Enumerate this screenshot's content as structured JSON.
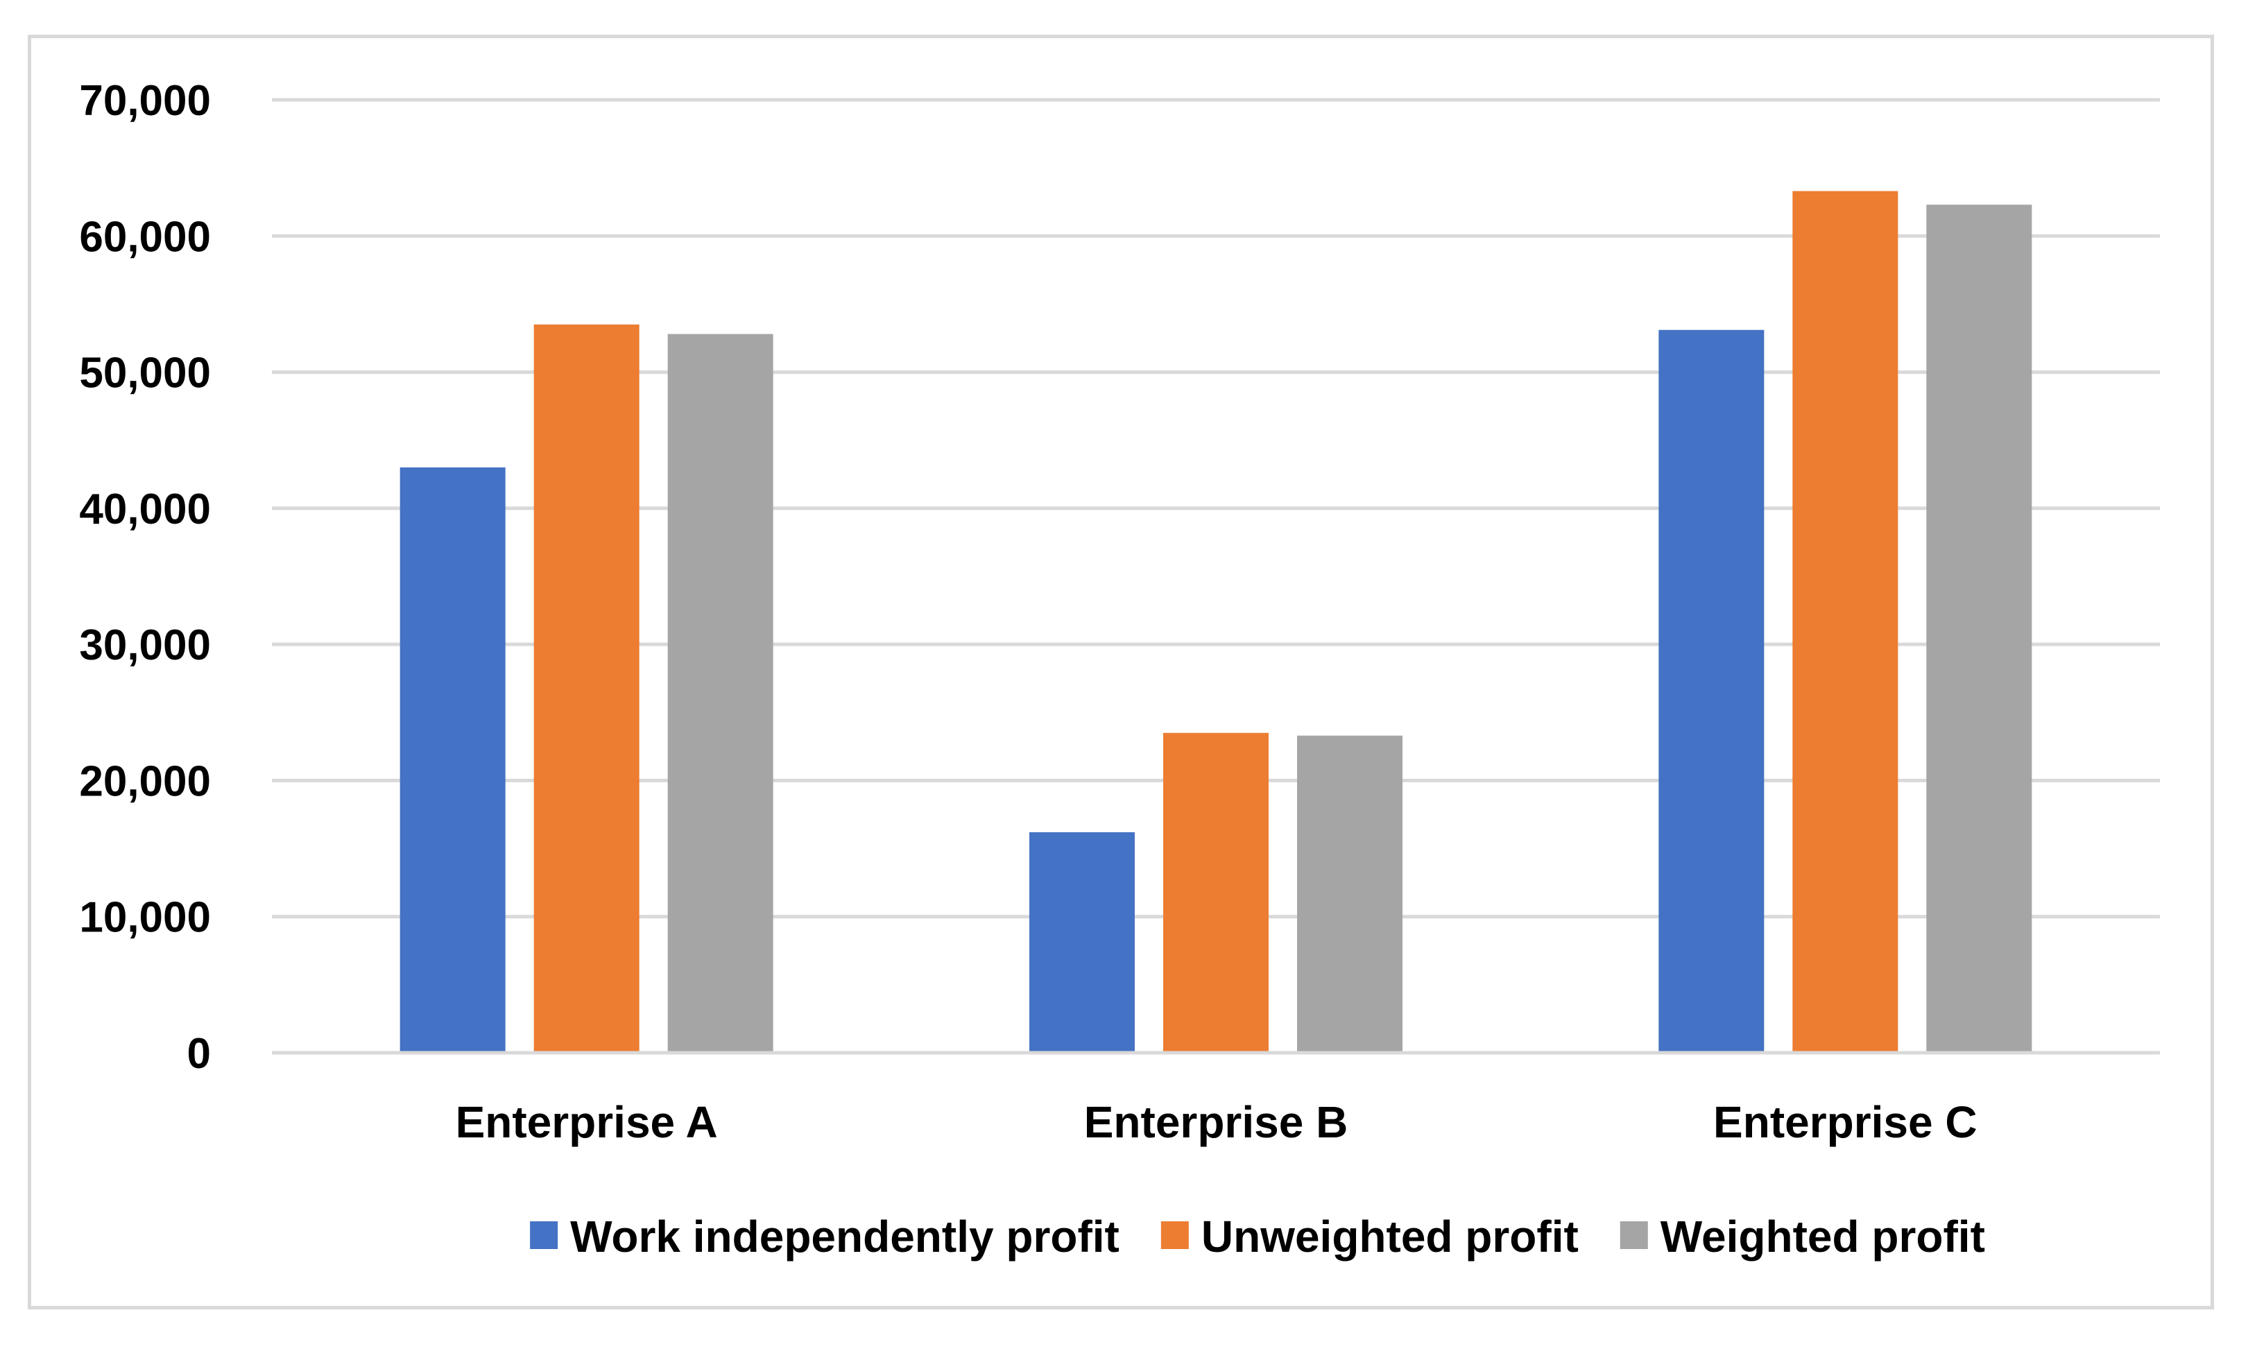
{
  "chart_data": {
    "type": "bar",
    "title": "",
    "xlabel": "",
    "ylabel": "",
    "categories": [
      "Enterprise A",
      "Enterprise B",
      "Enterprise C"
    ],
    "series": [
      {
        "name": "Work independently profit",
        "color": "#4472C4",
        "values": [
          43000,
          16200,
          53100
        ]
      },
      {
        "name": "Unweighted profit",
        "color": "#ED7D31",
        "values": [
          53500,
          23500,
          63300
        ]
      },
      {
        "name": "Weighted profit",
        "color": "#A5A5A5",
        "values": [
          52800,
          23300,
          62300
        ]
      }
    ],
    "ylim": [
      0,
      70000
    ],
    "yticks": [
      0,
      10000,
      20000,
      30000,
      40000,
      50000,
      60000,
      70000
    ],
    "ytick_labels": [
      "0",
      "10,000",
      "20,000",
      "30,000",
      "40,000",
      "50,000",
      "60,000",
      "70,000"
    ],
    "grid": true,
    "legend_position": "bottom"
  }
}
